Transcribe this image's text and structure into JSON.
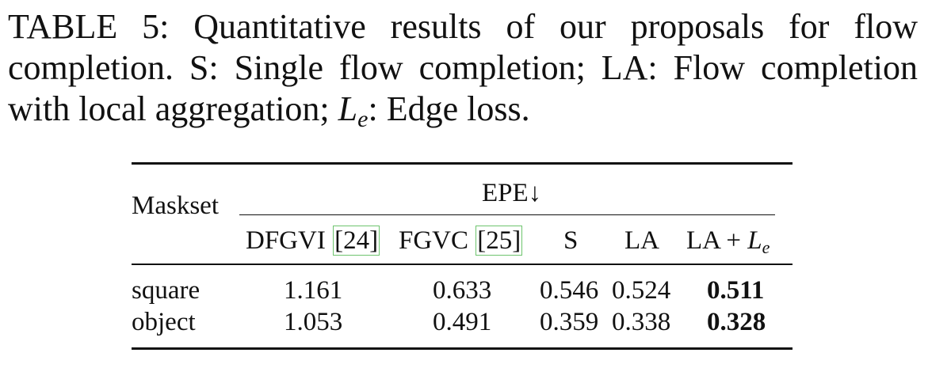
{
  "caption": {
    "label": "TABLE 5:",
    "text_before_math": " Quantitative results of our proposals for flow completion. S: Single flow completion; LA: Flow completion with local aggregation; ",
    "math_base": "L",
    "math_sub": "e",
    "text_after_math": ": Edge loss."
  },
  "table": {
    "row_header": "Maskset",
    "group_header": "EPE↓",
    "columns": {
      "dfgvi": "DFGVI",
      "dfgvi_cite": "[24]",
      "fgvc": "FGVC",
      "fgvc_cite": "[25]",
      "s": "S",
      "la": "LA",
      "la_le_prefix": "LA + ",
      "la_le_math_base": "L",
      "la_le_math_sub": "e"
    },
    "rows": [
      {
        "maskset": "square",
        "dfgvi": "1.161",
        "fgvc": "0.633",
        "s": "0.546",
        "la": "0.524",
        "la_le": "0.511"
      },
      {
        "maskset": "object",
        "dfgvi": "1.053",
        "fgvc": "0.491",
        "s": "0.359",
        "la": "0.338",
        "la_le": "0.328"
      }
    ]
  },
  "colors": {
    "text": "#111111",
    "citation_box": "#6ec46e"
  }
}
